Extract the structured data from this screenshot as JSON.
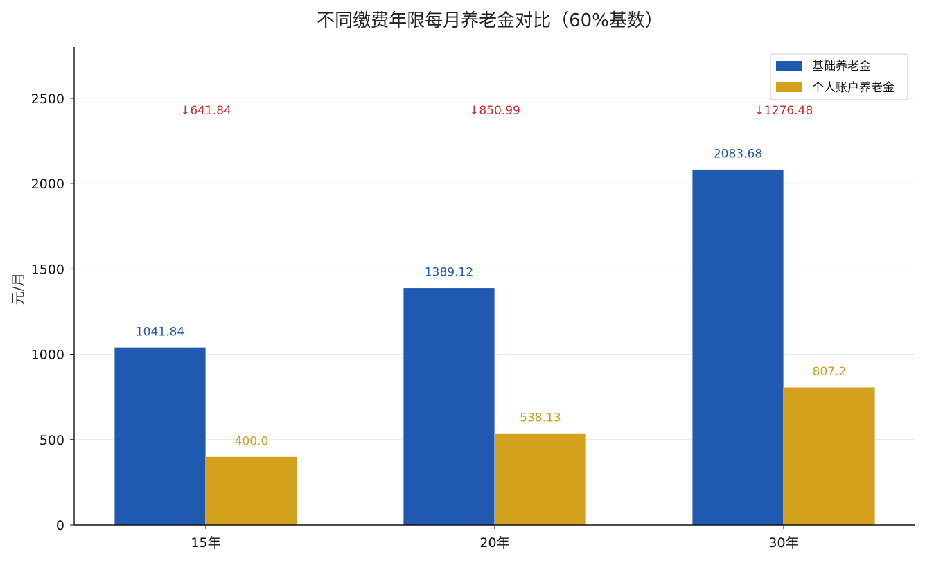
{
  "chart_data": {
    "type": "bar",
    "title": "不同缴费年限每月养老金对比（60%基数）",
    "xlabel": "",
    "ylabel": "元/月",
    "categories": [
      "15年",
      "20年",
      "30年"
    ],
    "series": [
      {
        "name": "基础养老金",
        "values": [
          1041.84,
          1389.12,
          2083.68
        ],
        "labels": [
          "1041.84",
          "1389.12",
          "2083.68"
        ],
        "color": "#1f5ab0"
      },
      {
        "name": "个人账户养老金",
        "values": [
          400.0,
          538.13,
          807.2
        ],
        "labels": [
          "400.0",
          "538.13",
          "807.2"
        ],
        "color": "#d4a11c"
      }
    ],
    "annotations": [
      "↓641.84",
      "↓850.99",
      "↓1276.48"
    ],
    "annotation_color": "#d62728",
    "ylim": [
      0,
      2800
    ],
    "yticks": [
      0,
      500,
      1000,
      1500,
      2000,
      2500
    ],
    "grid": true,
    "legend_position": "top-right"
  }
}
